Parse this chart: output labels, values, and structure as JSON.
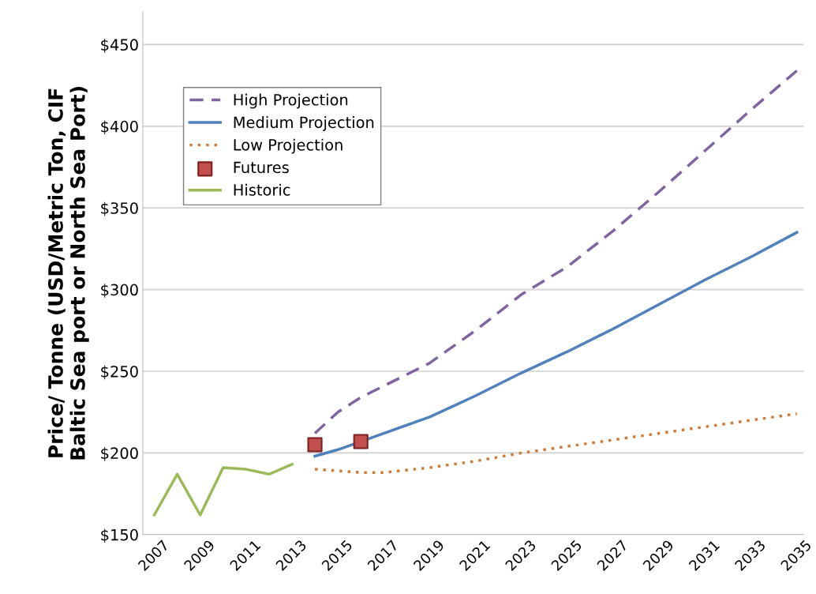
{
  "chart_data": {
    "type": "line",
    "ylabel": "Price/ Tonne (USD/Metric Ton, CIF\nBaltic Sea port or North Sea Port)",
    "xlim": [
      2006.5,
      2035.3
    ],
    "xticks": [
      2007,
      2009,
      2011,
      2013,
      2015,
      2017,
      2019,
      2021,
      2023,
      2025,
      2027,
      2029,
      2031,
      2033,
      2035
    ],
    "ylim": [
      150,
      470
    ],
    "yticks": [
      {
        "value": 150,
        "label": "$150"
      },
      {
        "value": 200,
        "label": "$200"
      },
      {
        "value": 250,
        "label": "$250"
      },
      {
        "value": 300,
        "label": "$300"
      },
      {
        "value": 350,
        "label": "$350"
      },
      {
        "value": 400,
        "label": "$400"
      },
      {
        "value": 450,
        "label": "$450"
      }
    ],
    "grid": "y",
    "legend": "upper left",
    "series": [
      {
        "name": "High Projection",
        "color": "#8064a2",
        "line_style": "dashed",
        "x": [
          2014,
          2015,
          2016,
          2017,
          2019,
          2021,
          2023,
          2025,
          2027,
          2029,
          2031,
          2033,
          2035
        ],
        "values": [
          212,
          225,
          234,
          241,
          255,
          275,
          297,
          314,
          336,
          360,
          385,
          410,
          434
        ]
      },
      {
        "name": "Medium Projection",
        "color": "#4f81bd",
        "line_style": "solid",
        "x": [
          2014,
          2015,
          2017,
          2019,
          2021,
          2023,
          2025,
          2027,
          2029,
          2031,
          2033,
          2035
        ],
        "values": [
          198,
          202,
          212,
          222,
          235,
          249,
          262,
          276,
          291,
          306,
          320,
          335
        ]
      },
      {
        "name": "Low Projection",
        "color": "#d07a3a",
        "line_style": "dotted",
        "x": [
          2014,
          2015,
          2016,
          2017,
          2019,
          2021,
          2023,
          2025,
          2027,
          2029,
          2031,
          2033,
          2035
        ],
        "values": [
          190,
          189,
          188,
          188,
          191,
          195,
          200,
          204,
          208,
          212,
          216,
          220,
          224
        ]
      },
      {
        "name": "Futures",
        "type": "scatter",
        "marker": "square",
        "color": "#c0504d",
        "x": [
          2014,
          2016
        ],
        "values": [
          205,
          207
        ]
      },
      {
        "name": "Historic",
        "color": "#9bbb59",
        "line_style": "solid",
        "x": [
          2007,
          2008,
          2009,
          2010,
          2011,
          2012,
          2013
        ],
        "values": [
          162,
          187,
          162,
          191,
          190,
          187,
          193
        ]
      }
    ]
  }
}
